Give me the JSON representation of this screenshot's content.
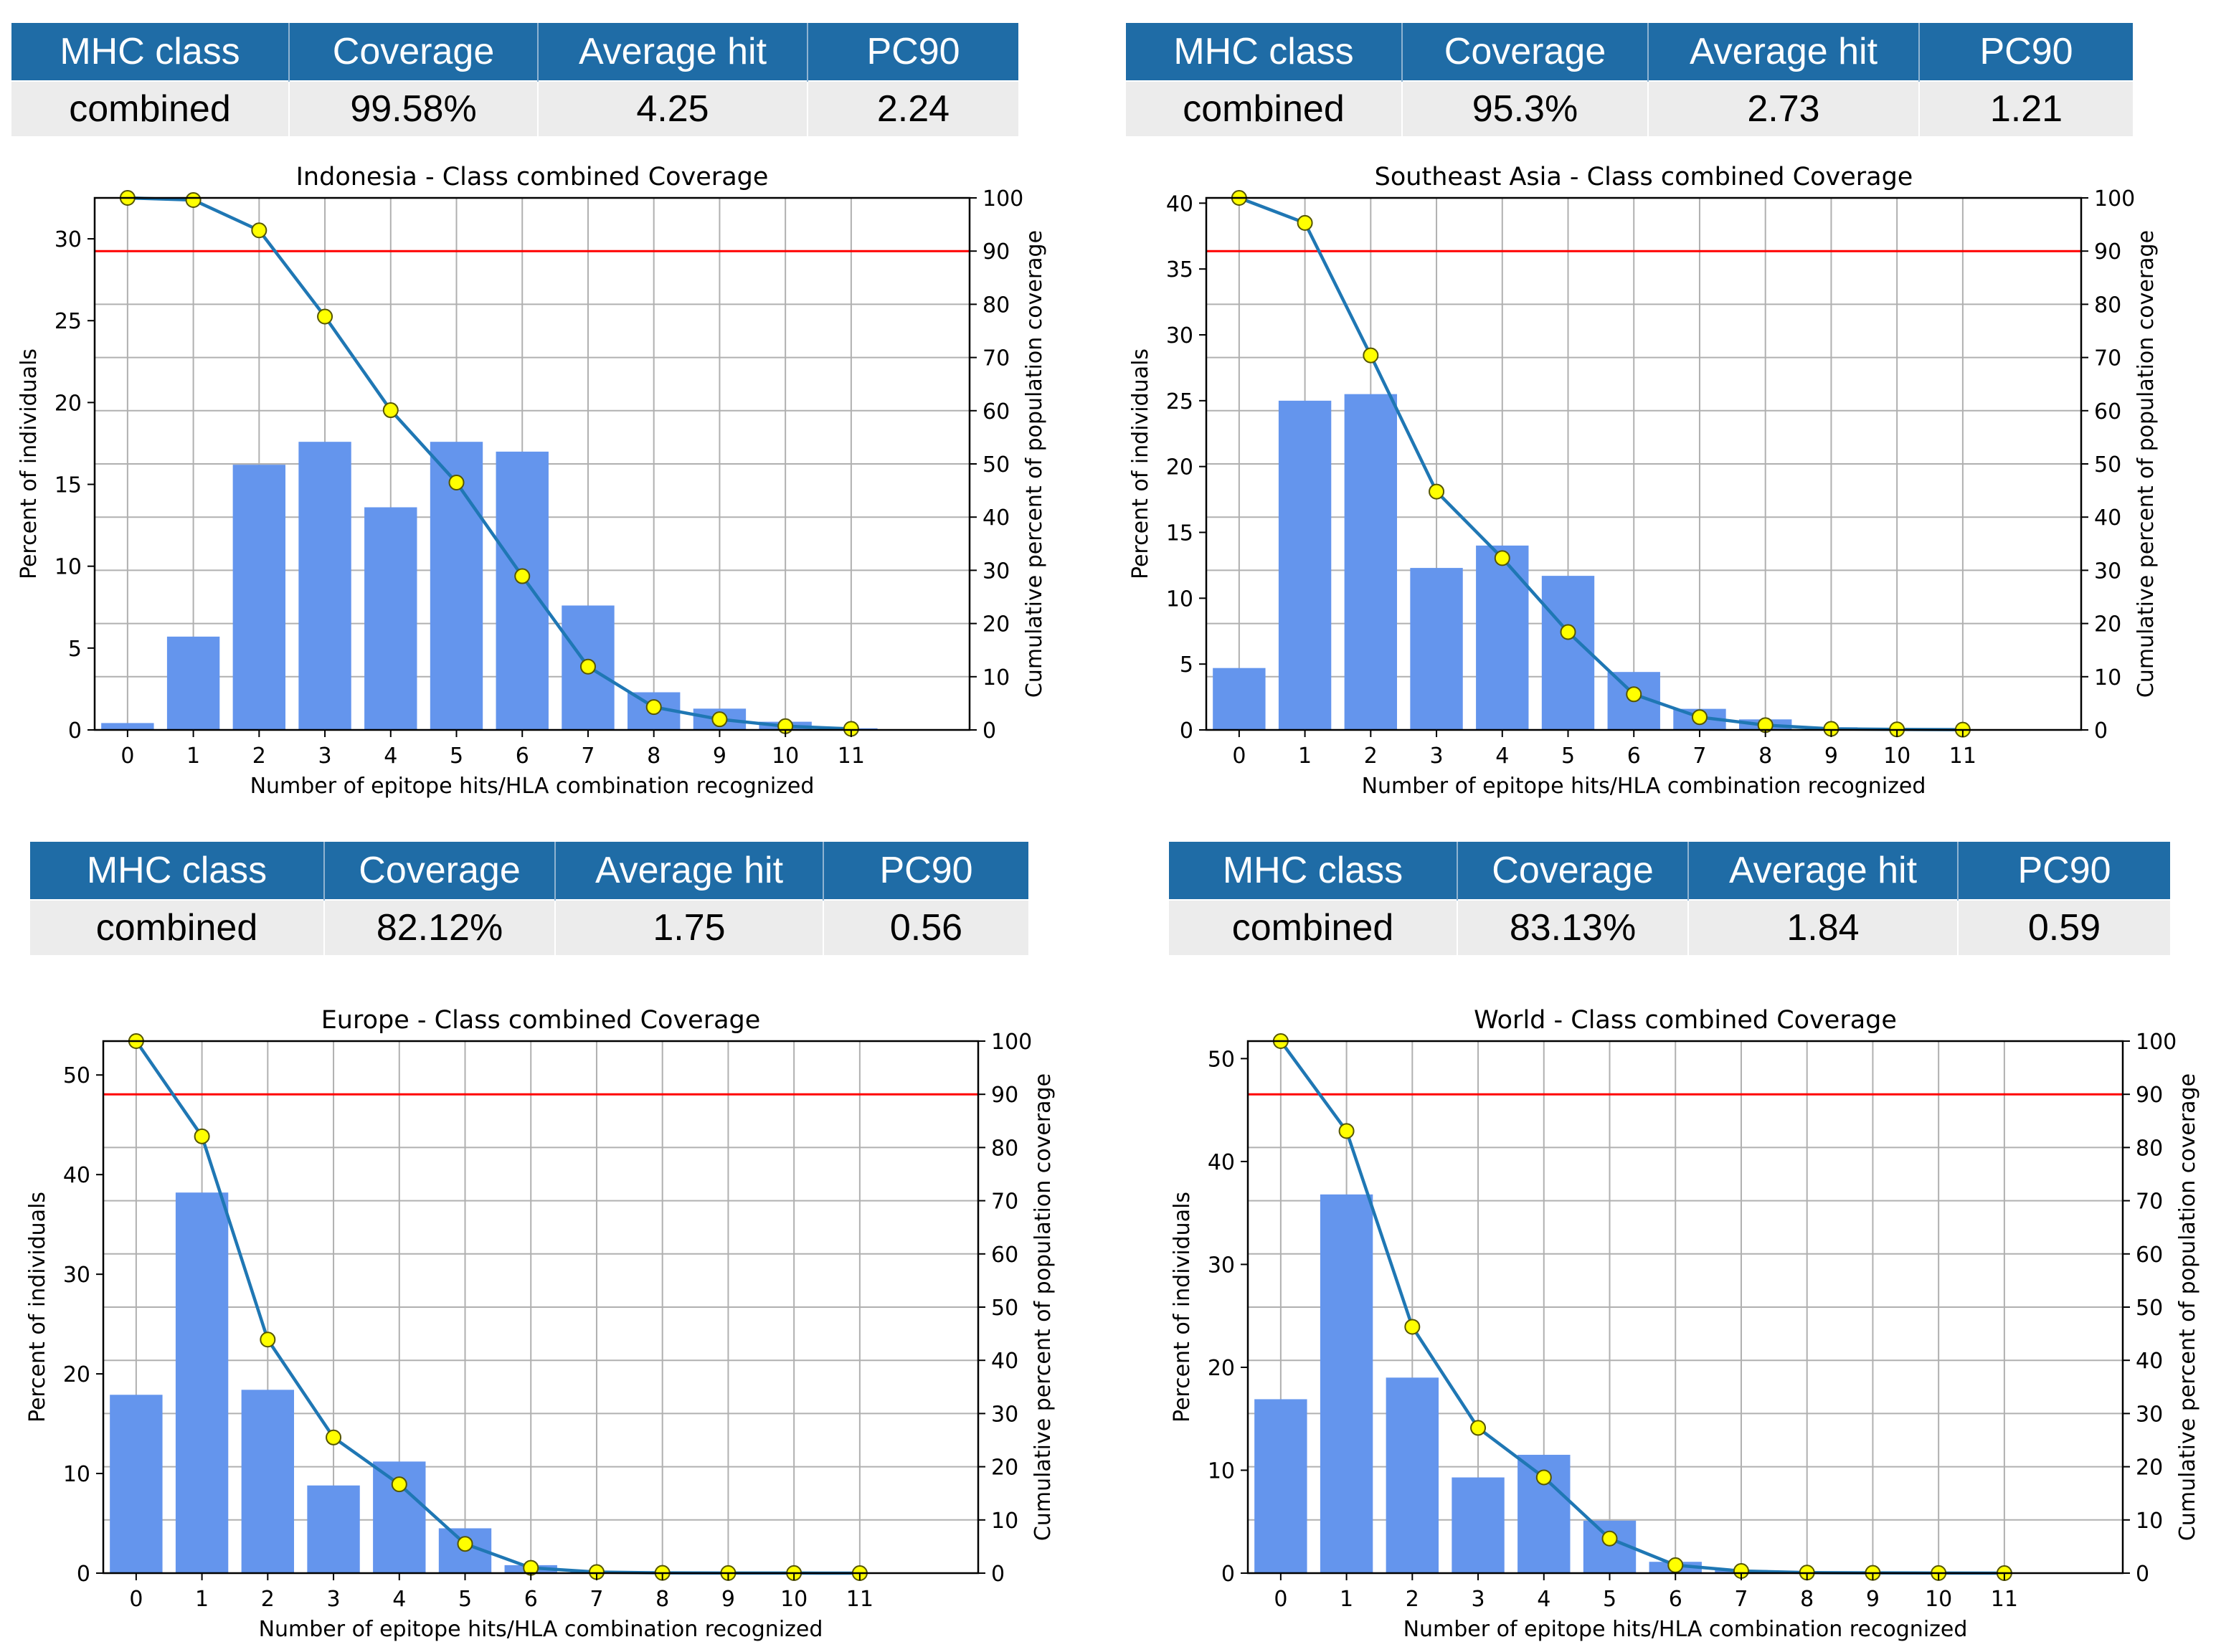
{
  "tables": [
    {
      "headers": [
        "MHC class",
        "Coverage",
        "Average hit",
        "PC90"
      ],
      "row": [
        "combined",
        "99.58%",
        "4.25",
        "2.24"
      ]
    },
    {
      "headers": [
        "MHC class",
        "Coverage",
        "Average hit",
        "PC90"
      ],
      "row": [
        "combined",
        "95.3%",
        "2.73",
        "1.21"
      ]
    },
    {
      "headers": [
        "MHC class",
        "Coverage",
        "Average hit",
        "PC90"
      ],
      "row": [
        "combined",
        "82.12%",
        "1.75",
        "0.56"
      ]
    },
    {
      "headers": [
        "MHC class",
        "Coverage",
        "Average hit",
        "PC90"
      ],
      "row": [
        "combined",
        "83.13%",
        "1.84",
        "0.59"
      ]
    }
  ],
  "colors": {
    "bar": "#6495ed",
    "line": "#1f77b4",
    "marker": "#ffff00",
    "threshold": "#ff0000",
    "header": "#1f6ca6"
  },
  "chart_data": [
    {
      "type": "bar",
      "title": "Indonesia - Class combined Coverage",
      "xlabel": "Number of epitope hits/HLA combination recognized",
      "ylabel": "Percent of individuals",
      "y2label": "Cumulative percent of population coverage",
      "categories": [
        "0",
        "1",
        "2",
        "3",
        "4",
        "5",
        "6",
        "7",
        "8",
        "9",
        "10",
        "11"
      ],
      "ylim": [
        0,
        32.5
      ],
      "yticks": [
        0,
        5,
        10,
        15,
        20,
        25,
        30
      ],
      "y2lim": [
        0,
        100
      ],
      "y2ticks": [
        0,
        10,
        20,
        30,
        40,
        50,
        60,
        70,
        80,
        90,
        100
      ],
      "threshold": 90,
      "grid": true,
      "series": [
        {
          "type": "bar",
          "axis": "left",
          "values": [
            0.42,
            5.7,
            16.2,
            17.6,
            13.6,
            17.6,
            17.0,
            7.6,
            2.3,
            1.3,
            0.5,
            0.1
          ]
        },
        {
          "type": "line",
          "axis": "right",
          "values": [
            100,
            99.6,
            93.9,
            77.7,
            60.1,
            46.5,
            28.9,
            11.9,
            4.3,
            2.0,
            0.7,
            0.2
          ]
        }
      ]
    },
    {
      "type": "bar",
      "title": "Southeast Asia - Class combined Coverage",
      "xlabel": "Number of epitope hits/HLA combination recognized",
      "ylabel": "Percent of individuals",
      "y2label": "Cumulative percent of population coverage",
      "categories": [
        "0",
        "1",
        "2",
        "3",
        "4",
        "5",
        "6",
        "7",
        "8",
        "9",
        "10",
        "11"
      ],
      "ylim": [
        0,
        40.4
      ],
      "yticks": [
        0,
        5,
        10,
        15,
        20,
        25,
        30,
        35,
        40
      ],
      "y2lim": [
        0,
        100
      ],
      "y2ticks": [
        0,
        10,
        20,
        30,
        40,
        50,
        60,
        70,
        80,
        90,
        100
      ],
      "threshold": 90,
      "grid": true,
      "series": [
        {
          "type": "bar",
          "axis": "left",
          "values": [
            4.7,
            25.0,
            25.5,
            12.3,
            14.0,
            11.7,
            4.4,
            1.6,
            0.8,
            0.2,
            0.1,
            0.05
          ]
        },
        {
          "type": "line",
          "axis": "right",
          "values": [
            100,
            95.3,
            70.4,
            44.8,
            32.3,
            18.4,
            6.7,
            2.4,
            0.9,
            0.2,
            0.1,
            0.05
          ]
        }
      ]
    },
    {
      "type": "bar",
      "title": "Europe - Class combined Coverage",
      "xlabel": "Number of epitope hits/HLA combination recognized",
      "ylabel": "Percent of individuals",
      "y2label": "Cumulative percent of population coverage",
      "categories": [
        "0",
        "1",
        "2",
        "3",
        "4",
        "5",
        "6",
        "7",
        "8",
        "9",
        "10",
        "11"
      ],
      "ylim": [
        0,
        53.4
      ],
      "yticks": [
        0,
        10,
        20,
        30,
        40,
        50
      ],
      "y2lim": [
        0,
        100
      ],
      "y2ticks": [
        0,
        10,
        20,
        30,
        40,
        50,
        60,
        70,
        80,
        90,
        100
      ],
      "threshold": 90,
      "grid": true,
      "series": [
        {
          "type": "bar",
          "axis": "left",
          "values": [
            17.9,
            38.2,
            18.4,
            8.8,
            11.2,
            4.5,
            0.8,
            0.2,
            0.1,
            0.05,
            0.02,
            0.01
          ]
        },
        {
          "type": "line",
          "axis": "right",
          "values": [
            100,
            82.1,
            43.9,
            25.5,
            16.7,
            5.5,
            1.0,
            0.2,
            0.05,
            0.02,
            0.01,
            0.0
          ]
        }
      ]
    },
    {
      "type": "bar",
      "title": "World - Class combined Coverage",
      "xlabel": "Number of epitope hits/HLA combination recognized",
      "ylabel": "Percent of individuals",
      "y2label": "Cumulative percent of population coverage",
      "categories": [
        "0",
        "1",
        "2",
        "3",
        "4",
        "5",
        "6",
        "7",
        "8",
        "9",
        "10",
        "11"
      ],
      "ylim": [
        0,
        51.7
      ],
      "yticks": [
        0,
        10,
        20,
        30,
        40,
        50
      ],
      "y2lim": [
        0,
        100
      ],
      "y2ticks": [
        0,
        10,
        20,
        30,
        40,
        50,
        60,
        70,
        80,
        90,
        100
      ],
      "threshold": 90,
      "grid": true,
      "series": [
        {
          "type": "bar",
          "axis": "left",
          "values": [
            16.9,
            36.8,
            19.0,
            9.3,
            11.5,
            5.1,
            1.1,
            0.3,
            0.1,
            0.05,
            0.02,
            0.01
          ]
        },
        {
          "type": "line",
          "axis": "right",
          "values": [
            100,
            83.1,
            46.3,
            27.3,
            18.0,
            6.5,
            1.5,
            0.4,
            0.1,
            0.05,
            0.02,
            0.0
          ]
        }
      ]
    }
  ]
}
